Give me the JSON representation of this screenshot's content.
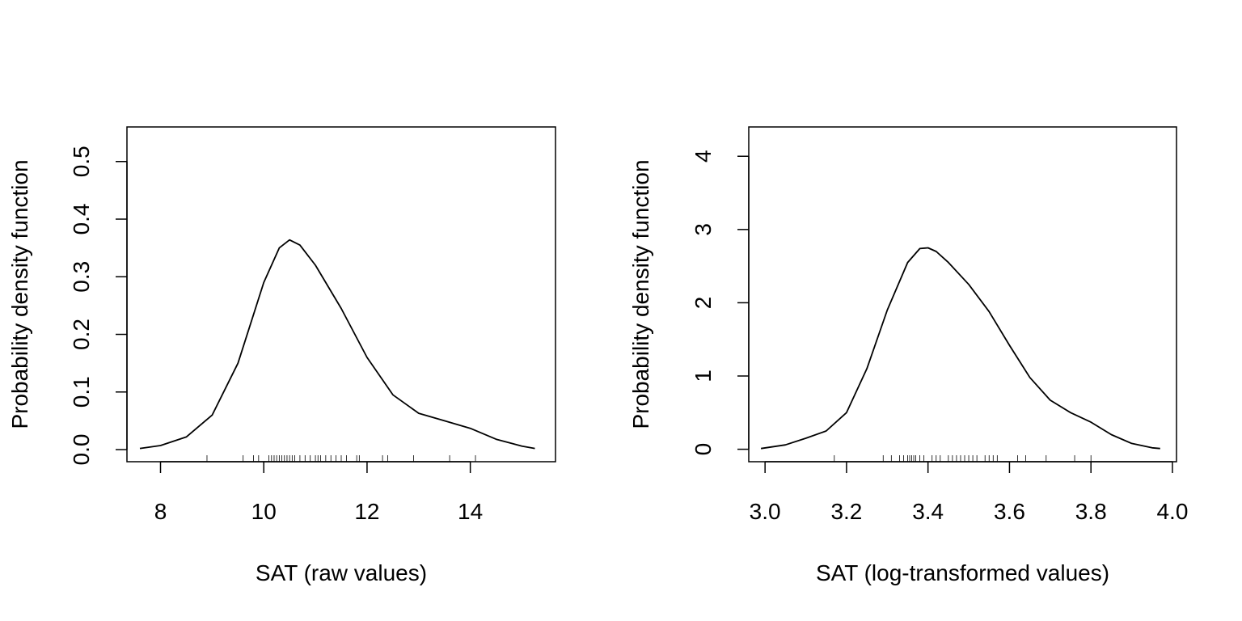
{
  "chart_data": [
    {
      "type": "line",
      "title": "",
      "xlabel": "SAT (raw values)",
      "ylabel": "Probability density function",
      "xlim": [
        7.35,
        15.65
      ],
      "ylim": [
        -0.021,
        0.56
      ],
      "xticks": [
        8,
        10,
        12,
        14
      ],
      "xtick_labels": [
        "8",
        "10",
        "12",
        "14"
      ],
      "yticks": [
        0.0,
        0.1,
        0.2,
        0.3,
        0.4,
        0.5
      ],
      "ytick_labels": [
        "0.0",
        "0.1",
        "0.2",
        "0.3",
        "0.4",
        "0.5"
      ],
      "grid": false,
      "series": [
        {
          "x": [
            7.6,
            8.0,
            8.5,
            9.0,
            9.5,
            10.0,
            10.3,
            10.5,
            10.7,
            11.0,
            11.5,
            12.0,
            12.5,
            13.0,
            13.5,
            14.0,
            14.5,
            15.0,
            15.25
          ],
          "y": [
            0.002,
            0.007,
            0.022,
            0.06,
            0.15,
            0.29,
            0.35,
            0.364,
            0.355,
            0.32,
            0.245,
            0.16,
            0.095,
            0.063,
            0.05,
            0.037,
            0.018,
            0.006,
            0.002
          ]
        }
      ],
      "rug": [
        8.9,
        9.6,
        9.8,
        9.9,
        10.1,
        10.15,
        10.2,
        10.25,
        10.3,
        10.35,
        10.4,
        10.45,
        10.5,
        10.55,
        10.6,
        10.7,
        10.8,
        10.9,
        11.0,
        11.05,
        11.1,
        11.2,
        11.3,
        11.4,
        11.5,
        11.6,
        11.8,
        11.85,
        12.3,
        12.4,
        12.9,
        13.6,
        14.1
      ]
    },
    {
      "type": "line",
      "title": "",
      "xlabel": "SAT (log-transformed values)",
      "ylabel": "Probability density function",
      "xlim": [
        2.96,
        4.01
      ],
      "ylim": [
        -0.17,
        4.4
      ],
      "xticks": [
        3.0,
        3.2,
        3.4,
        3.6,
        3.8,
        4.0
      ],
      "xtick_labels": [
        "3.0",
        "3.2",
        "3.4",
        "3.6",
        "3.8",
        "4.0"
      ],
      "yticks": [
        0,
        1,
        2,
        3,
        4
      ],
      "ytick_labels": [
        "0",
        "1",
        "2",
        "3",
        "4"
      ],
      "grid": false,
      "series": [
        {
          "x": [
            2.99,
            3.05,
            3.1,
            3.15,
            3.2,
            3.25,
            3.3,
            3.35,
            3.38,
            3.4,
            3.42,
            3.45,
            3.5,
            3.55,
            3.6,
            3.65,
            3.7,
            3.75,
            3.8,
            3.85,
            3.9,
            3.95,
            3.97
          ],
          "y": [
            0.01,
            0.06,
            0.15,
            0.25,
            0.5,
            1.1,
            1.9,
            2.55,
            2.74,
            2.75,
            2.7,
            2.55,
            2.25,
            1.88,
            1.42,
            0.98,
            0.67,
            0.5,
            0.37,
            0.2,
            0.08,
            0.02,
            0.01
          ]
        }
      ],
      "rug": [
        3.17,
        3.29,
        3.31,
        3.33,
        3.34,
        3.35,
        3.355,
        3.36,
        3.365,
        3.37,
        3.38,
        3.39,
        3.41,
        3.42,
        3.43,
        3.45,
        3.46,
        3.47,
        3.48,
        3.49,
        3.5,
        3.51,
        3.52,
        3.54,
        3.55,
        3.56,
        3.57,
        3.62,
        3.64,
        3.69,
        3.76,
        3.8
      ]
    }
  ]
}
